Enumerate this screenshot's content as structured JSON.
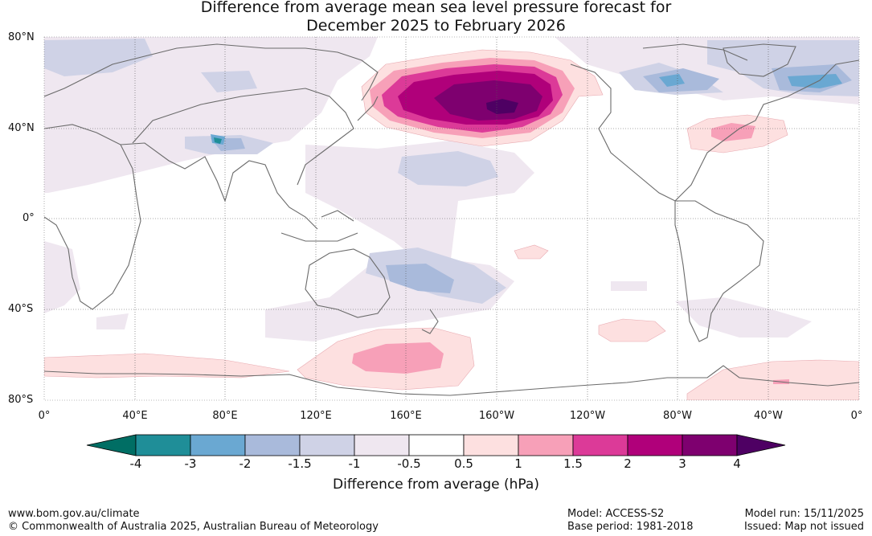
{
  "title": {
    "line1": "Difference from average mean sea level pressure forecast for",
    "line2": "December 2025 to February 2026"
  },
  "map": {
    "lat_labels": [
      "80°N",
      "40°N",
      "0°",
      "40°S",
      "80°S"
    ],
    "lon_labels": [
      "0°",
      "40°E",
      "80°E",
      "120°E",
      "160°E",
      "160°W",
      "120°W",
      "80°W",
      "40°W",
      "0°"
    ],
    "anomaly_regions": [
      {
        "name": "north-pacific-high",
        "category": "3 to 4 hPa",
        "peak": "above 4 hPa"
      },
      {
        "name": "north-atlantic-positive",
        "category": "1 to 1.5 hPa"
      },
      {
        "name": "southern-ocean-positive",
        "category": "1 to 1.5 hPa"
      },
      {
        "name": "tasman-negative",
        "category": "-1.5 to -2 hPa"
      },
      {
        "name": "tibet-negative",
        "category": "-3 to -4 hPa"
      },
      {
        "name": "arctic-negative",
        "category": "-2 to -3 hPa"
      }
    ]
  },
  "colorbar": {
    "ticks": [
      "-4",
      "-3",
      "-2",
      "-1.5",
      "-1",
      "-0.5",
      "0.5",
      "1",
      "1.5",
      "2",
      "3",
      "4"
    ],
    "colors": [
      "#006e64",
      "#1f8e98",
      "#6aa8d2",
      "#a9badb",
      "#cfd2e6",
      "#efe7f0",
      "#ffffff",
      "#fde0e0",
      "#f7a0b8",
      "#dc3a98",
      "#b0007a",
      "#7e006f",
      "#4e0063"
    ],
    "label": "Difference from average (hPa)"
  },
  "footer": {
    "website": "www.bom.gov.au/climate",
    "copyright": "© Commonwealth of Australia 2025, Australian Bureau of Meteorology",
    "model": "Model: ACCESS-S2",
    "base_period": "Base period: 1981-2018",
    "model_run": "Model run: 15/11/2025",
    "issued": "Issued: Map not issued"
  }
}
